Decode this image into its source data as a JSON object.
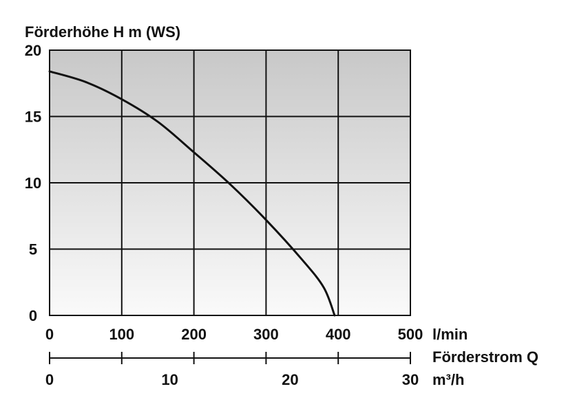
{
  "chart_data": {
    "type": "line",
    "ylabel": "Förderhöhe H m (WS)",
    "ylim": [
      0,
      20
    ],
    "y_ticks": [
      0,
      5,
      10,
      15,
      20
    ],
    "xlabel_unit": "l/min",
    "xlim": [
      0,
      500
    ],
    "x_ticks": [
      0,
      100,
      200,
      300,
      400,
      500
    ],
    "secondary_axis": {
      "label": "Förderstrom Q",
      "unit": "m³/h",
      "range": [
        0,
        30
      ],
      "tick_labels": [
        "0",
        "10",
        "20",
        "30"
      ],
      "tick_values": [
        0,
        10,
        20,
        30
      ]
    },
    "grid": true,
    "background_gradient": [
      "#c8c8c8",
      "#fafafa"
    ],
    "series": [
      {
        "x": [
          0,
          50,
          100,
          150,
          200,
          250,
          300,
          350,
          380,
          395
        ],
        "y": [
          18.4,
          17.6,
          16.3,
          14.6,
          12.3,
          9.9,
          7.2,
          4.2,
          2.1,
          0
        ]
      }
    ]
  }
}
